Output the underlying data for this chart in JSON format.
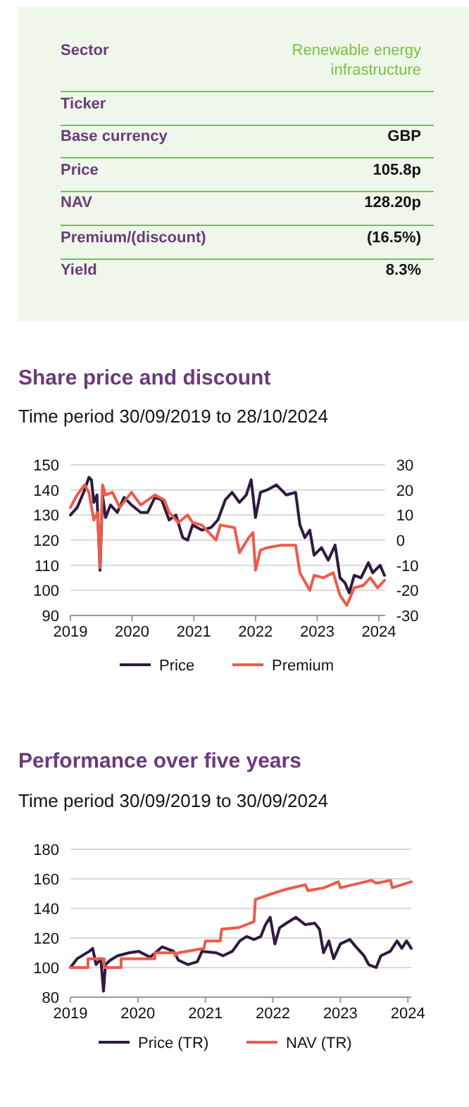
{
  "chart_data": [
    {
      "type": "other",
      "categories": [
        "Sector",
        "Ticker",
        "Base currency",
        "Price",
        "NAV",
        "Premium/(discount)",
        "Yield"
      ],
      "value_labels": [
        "Renewable energy infrastructure",
        null,
        "GBP",
        "105.8p",
        "128.20p",
        "(16.5%)",
        "8.3%"
      ]
    },
    {
      "type": "line",
      "title": "Share price and discount",
      "subtitle": "Time period 30/09/2019 to 28/10/2024",
      "xlim": [
        2019,
        2024.1
      ],
      "xticks": [
        2019,
        2020,
        2021,
        2022,
        2023,
        2024
      ],
      "ylim": [
        90,
        150
      ],
      "yticks": [
        90,
        100,
        110,
        120,
        130,
        140,
        150
      ],
      "y2lim": [
        -30,
        30
      ],
      "y2ticks": [
        -30,
        -20,
        -10,
        0,
        10,
        20,
        30
      ],
      "grid": "y",
      "legend": "bottom",
      "series": [
        {
          "name": "Price",
          "color": "#2e1a3f",
          "x": [
            2019,
            2019.11,
            2019.23,
            2019.3,
            2019.34,
            2019.38,
            2019.43,
            2019.48,
            2019.52,
            2019.57,
            2019.65,
            2019.76,
            2019.87,
            2019.99,
            2020.14,
            2020.25,
            2020.37,
            2020.48,
            2020.6,
            2020.71,
            2020.82,
            2020.9,
            2020.98,
            2021.13,
            2021.28,
            2021.39,
            2021.51,
            2021.62,
            2021.74,
            2021.85,
            2021.93,
            2022,
            2022.08,
            2022.19,
            2022.34,
            2022.5,
            2022.65,
            2022.72,
            2022.8,
            2022.88,
            2022.95,
            2023.07,
            2023.18,
            2023.29,
            2023.37,
            2023.45,
            2023.52,
            2023.6,
            2023.71,
            2023.83,
            2023.9,
            2024.02,
            2024.09
          ],
          "values": [
            130,
            133,
            140,
            145,
            144,
            135,
            138,
            108,
            138,
            129,
            134,
            131,
            137,
            134,
            131,
            131,
            137,
            136,
            128,
            130,
            121,
            120,
            126,
            124,
            125,
            128,
            136,
            139,
            135,
            138,
            144,
            129,
            139,
            140,
            142,
            138,
            139,
            126,
            121,
            124,
            114,
            117,
            112,
            118,
            105,
            103,
            99,
            106,
            105,
            111,
            107,
            110,
            106
          ]
        },
        {
          "name": "Premium",
          "color": "#ef5a4a",
          "axis": "y2",
          "x": [
            2019,
            2019.11,
            2019.23,
            2019.3,
            2019.38,
            2019.44,
            2019.48,
            2019.52,
            2019.57,
            2019.68,
            2019.8,
            2019.99,
            2020.14,
            2020.37,
            2020.52,
            2020.6,
            2020.75,
            2020.9,
            2020.98,
            2021.13,
            2021.36,
            2021.43,
            2021.66,
            2021.74,
            2021.89,
            2021.96,
            2022,
            2022.08,
            2022.19,
            2022.42,
            2022.65,
            2022.72,
            2022.88,
            2022.95,
            2023.1,
            2023.26,
            2023.37,
            2023.48,
            2023.6,
            2023.75,
            2023.86,
            2023.98,
            2024.09
          ],
          "values": [
            13,
            18,
            22,
            19,
            8,
            11,
            -11,
            22,
            18,
            19,
            13,
            19,
            14,
            18,
            16,
            11,
            7,
            10,
            7,
            6,
            0,
            6,
            5,
            -5,
            1,
            3,
            -12,
            -4,
            -3,
            -2,
            -2,
            -13,
            -20,
            -14,
            -15,
            -13,
            -22,
            -26,
            -19,
            -18,
            -15,
            -19,
            -16
          ]
        }
      ]
    },
    {
      "type": "line",
      "title": "Performance over five years",
      "subtitle": "Time period 30/09/2019 to 30/09/2024",
      "xlim": [
        2019,
        2024.05
      ],
      "xticks": [
        2019,
        2020,
        2021,
        2022,
        2023,
        2024
      ],
      "ylim": [
        80,
        180
      ],
      "yticks": [
        80,
        100,
        120,
        140,
        160,
        180
      ],
      "grid": "y",
      "legend": "bottom",
      "series": [
        {
          "name": "Price (TR)",
          "color": "#2e1a3f",
          "x": [
            2019,
            2019.1,
            2019.28,
            2019.33,
            2019.38,
            2019.45,
            2019.49,
            2019.52,
            2019.59,
            2019.7,
            2019.87,
            2020.01,
            2020.18,
            2020.36,
            2020.53,
            2020.6,
            2020.74,
            2020.88,
            2020.95,
            2021.16,
            2021.26,
            2021.4,
            2021.51,
            2021.61,
            2021.72,
            2021.82,
            2021.89,
            2021.96,
            2022.03,
            2022.1,
            2022.2,
            2022.34,
            2022.48,
            2022.62,
            2022.69,
            2022.75,
            2022.83,
            2022.9,
            2023,
            2023.14,
            2023.25,
            2023.35,
            2023.42,
            2023.53,
            2023.6,
            2023.74,
            2023.84,
            2023.91,
            2023.98,
            2024.05
          ],
          "values": [
            100,
            106,
            111,
            113,
            102,
            106,
            84,
            102,
            105,
            108,
            110,
            111,
            107,
            114,
            111,
            105,
            102,
            104,
            111,
            110,
            108,
            111,
            118,
            121,
            119,
            121,
            129,
            134,
            116,
            127,
            130,
            134,
            129,
            130,
            126,
            110,
            118,
            106,
            116,
            119,
            113,
            108,
            102,
            100,
            108,
            111,
            118,
            113,
            118,
            113
          ]
        },
        {
          "name": "NAV (TR)",
          "color": "#ef5a4a",
          "x": [
            2019,
            2019.26,
            2019.26,
            2019.5,
            2019.5,
            2019.75,
            2019.75,
            2020.25,
            2020.25,
            2020.55,
            2020.55,
            2020.6,
            2020.98,
            2021,
            2021.22,
            2021.24,
            2021.49,
            2021.72,
            2021.74,
            2021.99,
            2022.2,
            2022.48,
            2022.52,
            2022.76,
            2022.97,
            2023,
            2023.46,
            2023.53,
            2023.74,
            2023.77,
            2024.05
          ],
          "values": [
            100,
            100,
            106,
            106,
            100,
            100,
            106,
            106,
            110,
            110,
            108,
            110,
            113,
            118,
            118,
            126,
            127,
            131,
            146,
            150,
            153,
            156,
            152,
            154,
            158,
            154,
            159,
            157,
            159,
            154,
            158
          ]
        }
      ]
    }
  ]
}
